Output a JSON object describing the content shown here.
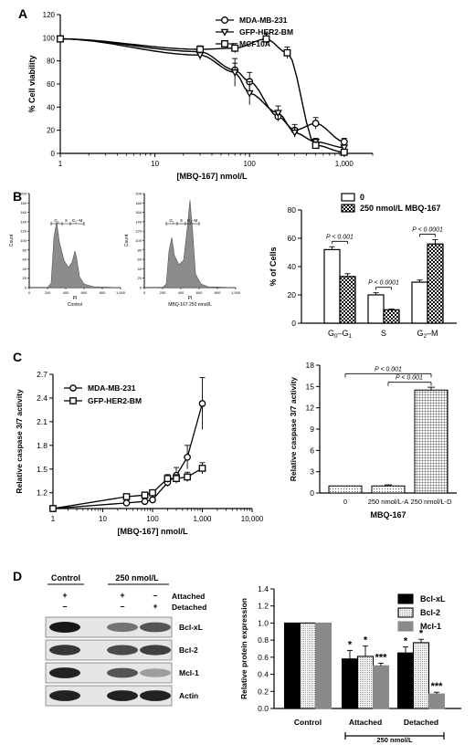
{
  "panels": {
    "A": "A",
    "B": "B",
    "C": "C",
    "D": "D"
  },
  "chart_data": [
    {
      "id": "A",
      "type": "line",
      "xlabel": "[MBQ-167] nmol/L",
      "ylabel": "% Cell viability",
      "xscale": "log",
      "xlim": [
        1,
        2000
      ],
      "ylim": [
        0,
        120
      ],
      "xticks": [
        1,
        10,
        100,
        "1,000"
      ],
      "yticks": [
        0,
        20,
        40,
        60,
        80,
        100,
        120
      ],
      "legend": "top-right",
      "series": [
        {
          "name": "MDA-MB-231",
          "marker": "circle",
          "x": [
            1,
            30,
            70,
            100,
            200,
            300,
            500,
            1000
          ],
          "y": [
            99,
            88,
            72,
            62,
            32,
            20,
            26,
            10
          ],
          "err": [
            2,
            4,
            6,
            8,
            4,
            5,
            5,
            3
          ]
        },
        {
          "name": "GFP-HER2-BM",
          "marker": "triangle-down",
          "x": [
            1,
            30,
            70,
            100,
            200,
            300,
            500,
            1000
          ],
          "y": [
            99,
            85,
            70,
            52,
            35,
            18,
            10,
            5
          ],
          "err": [
            2,
            4,
            12,
            10,
            6,
            4,
            3,
            2
          ]
        },
        {
          "name": "MCF10A",
          "marker": "square",
          "x": [
            1,
            30,
            70,
            150,
            250,
            500,
            1000
          ],
          "y": [
            99,
            90,
            91,
            99,
            87,
            7,
            1
          ],
          "err": [
            2,
            3,
            4,
            5,
            5,
            3,
            1
          ]
        }
      ]
    },
    {
      "id": "B-hist",
      "type": "area",
      "histograms": [
        {
          "caption": "Control",
          "xlabel": "PI",
          "ylabel": "Count",
          "gates": [
            "G0",
            "S",
            "G2–M"
          ]
        },
        {
          "caption": "MBQ-167 250 nmol/L",
          "xlabel": "PI",
          "ylabel": "Count",
          "gates": [
            "G1",
            "S",
            "G2–M"
          ]
        }
      ],
      "xticks": [
        0,
        200,
        400,
        600,
        800,
        "1,000"
      ],
      "yticks": [
        0,
        20,
        40,
        60,
        80,
        100,
        120,
        140,
        160,
        180,
        200
      ]
    },
    {
      "id": "B-bar",
      "type": "bar",
      "ylabel": "% of Cells",
      "ylim": [
        0,
        80
      ],
      "yticks": [
        0,
        20,
        40,
        60,
        80
      ],
      "categories": [
        "G0–G1",
        "S",
        "G2–M"
      ],
      "series": [
        {
          "name": "0",
          "values": [
            52,
            20,
            29
          ],
          "err": [
            2,
            1.5,
            1.5
          ]
        },
        {
          "name": "250 nmol/L MBQ-167",
          "values": [
            33,
            9.5,
            56
          ],
          "err": [
            2,
            0.5,
            3
          ]
        }
      ],
      "annotations": [
        "P < 0.001",
        "P < 0.0001",
        "P < 0.0001"
      ],
      "legend": "top"
    },
    {
      "id": "C-line",
      "type": "line",
      "xlabel": "[MBQ-167] nmol/L",
      "ylabel": "Relative caspase 3/7 activity",
      "xscale": "log",
      "xlim": [
        1,
        10000
      ],
      "ylim": [
        1.0,
        2.7
      ],
      "xticks": [
        1,
        10,
        100,
        "1,000",
        "10,000"
      ],
      "yticks": [
        1.2,
        1.5,
        1.8,
        2.1,
        2.4,
        2.7
      ],
      "legend": "top-left",
      "series": [
        {
          "name": "MDA-MB-231",
          "marker": "circle",
          "x": [
            1,
            30,
            70,
            100,
            200,
            300,
            500,
            1000
          ],
          "y": [
            1.0,
            1.07,
            1.09,
            1.11,
            1.33,
            1.42,
            1.65,
            2.33
          ],
          "err": [
            0,
            0.02,
            0.02,
            0.03,
            0.05,
            0.1,
            0.15,
            0.33
          ]
        },
        {
          "name": "GFP-HER2-BM",
          "marker": "square",
          "x": [
            1,
            30,
            70,
            100,
            200,
            300,
            500,
            1000
          ],
          "y": [
            1.0,
            1.15,
            1.17,
            1.2,
            1.38,
            1.38,
            1.4,
            1.51
          ],
          "err": [
            0,
            0.02,
            0.02,
            0.03,
            0.05,
            0.05,
            0.06,
            0.07
          ]
        }
      ]
    },
    {
      "id": "C-bar",
      "type": "bar",
      "ylabel": "Relative caspase 3/7 activity",
      "xlabel": "MBQ-167",
      "ylim": [
        0,
        18
      ],
      "yticks": [
        0,
        3,
        6,
        9,
        12,
        15,
        18
      ],
      "categories": [
        "0",
        "250 nmol/L-A",
        "250 nmol/L-D"
      ],
      "values": [
        1.0,
        1.0,
        14.5
      ],
      "err": [
        0,
        0.15,
        0.4
      ],
      "annotations": [
        "P < 0.001",
        "P < 0.001"
      ]
    },
    {
      "id": "D-blot",
      "type": "table",
      "groups": [
        "Control",
        "250 nmol/L"
      ],
      "rows": [
        {
          "label": "Attached",
          "marks": [
            "+",
            "+",
            "–"
          ]
        },
        {
          "label": "Detached",
          "marks": [
            "–",
            "–",
            "+"
          ]
        }
      ],
      "bands": [
        "Bcl-xL",
        "Bcl-2",
        "Mcl-1",
        "Actin"
      ]
    },
    {
      "id": "D-bar",
      "type": "bar",
      "ylabel": "Relative protein expression",
      "ylim": [
        0,
        1.4
      ],
      "yticks": [
        0.0,
        0.2,
        0.4,
        0.6,
        0.8,
        1.0,
        1.2,
        1.4
      ],
      "categories": [
        "Control",
        "Attached",
        "Detached"
      ],
      "group_label": "250 nmol/L",
      "series": [
        {
          "name": "Bcl-xL",
          "values": [
            1.0,
            0.58,
            0.65
          ],
          "err": [
            0,
            0.1,
            0.07
          ],
          "sig": [
            "",
            "*",
            "*"
          ]
        },
        {
          "name": "Bcl-2",
          "values": [
            1.0,
            0.61,
            0.77
          ],
          "err": [
            0,
            0.12,
            0.04
          ],
          "sig": [
            "",
            "*",
            "*"
          ]
        },
        {
          "name": "Mcl-1",
          "values": [
            1.0,
            0.5,
            0.17
          ],
          "err": [
            0,
            0.03,
            0.02
          ],
          "sig": [
            "",
            "***",
            "***"
          ]
        }
      ],
      "legend": "top-right"
    }
  ]
}
